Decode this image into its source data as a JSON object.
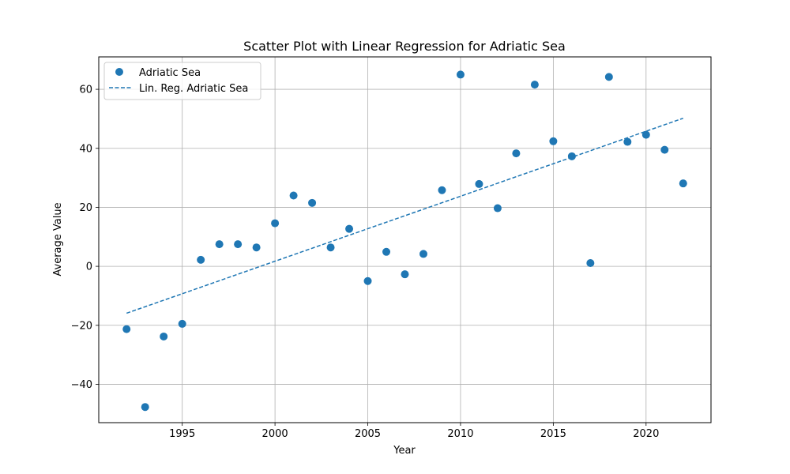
{
  "chart_data": {
    "type": "scatter",
    "title": "Scatter Plot with Linear Regression for Adriatic Sea",
    "xlabel": "Year",
    "ylabel": "Average Value",
    "xlim": [
      1990.5,
      2023.5
    ],
    "ylim": [
      -53,
      71
    ],
    "xticks": [
      1995,
      2000,
      2005,
      2010,
      2015,
      2020
    ],
    "yticks": [
      -40,
      -20,
      0,
      20,
      40,
      60
    ],
    "grid": true,
    "legend_position": "top-left",
    "series": [
      {
        "name": "Adriatic Sea",
        "kind": "scatter",
        "color": "#1f77b4",
        "x": [
          1992,
          1993,
          1994,
          1995,
          1996,
          1997,
          1998,
          1999,
          2000,
          2001,
          2002,
          2003,
          2004,
          2005,
          2006,
          2007,
          2008,
          2009,
          2010,
          2011,
          2012,
          2013,
          2014,
          2015,
          2016,
          2017,
          2018,
          2019,
          2020,
          2021,
          2022
        ],
        "y": [
          -21.3,
          -47.7,
          -23.8,
          -19.5,
          2.2,
          7.5,
          7.5,
          6.4,
          14.6,
          24.0,
          21.5,
          6.4,
          12.7,
          -5.0,
          4.9,
          -2.7,
          4.2,
          25.8,
          65.0,
          27.9,
          19.7,
          38.3,
          61.6,
          42.4,
          37.3,
          1.1,
          64.2,
          42.2,
          44.6,
          39.5,
          28.1
        ]
      },
      {
        "name": "Lin. Reg. Adriatic Sea",
        "kind": "line",
        "style": "dashed",
        "color": "#1f77b4",
        "x": [
          1992,
          2022
        ],
        "y": [
          -15.9,
          50.2
        ]
      }
    ]
  }
}
